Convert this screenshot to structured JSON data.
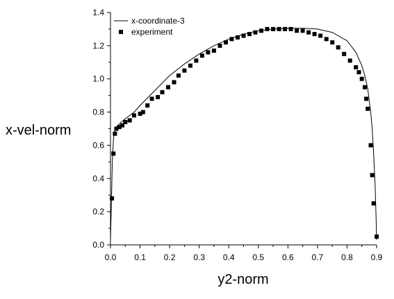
{
  "chart_data": {
    "type": "scatter",
    "title": "",
    "xlabel": "y2-norm",
    "ylabel": "x-vel-norm",
    "xlim": [
      0,
      0.9
    ],
    "ylim": [
      0,
      1.4
    ],
    "xticks": [
      "0.0",
      "0.1",
      "0.2",
      "0.3",
      "0.4",
      "0.5",
      "0.6",
      "0.7",
      "0.8",
      "0.9"
    ],
    "yticks": [
      "0.0",
      "0.2",
      "0.4",
      "0.6",
      "0.8",
      "1.0",
      "1.2",
      "1.4"
    ],
    "grid": false,
    "legend_position": "top-left",
    "series": [
      {
        "name": "x-coordinate-3",
        "style": "line",
        "color": "#000000",
        "x": [
          0.0,
          0.003,
          0.006,
          0.01,
          0.015,
          0.03,
          0.05,
          0.08,
          0.1,
          0.15,
          0.2,
          0.25,
          0.3,
          0.35,
          0.4,
          0.45,
          0.5,
          0.55,
          0.6,
          0.65,
          0.7,
          0.75,
          0.8,
          0.83,
          0.85,
          0.86,
          0.87,
          0.88,
          0.885,
          0.89,
          0.895,
          0.898,
          0.9
        ],
        "y": [
          0.03,
          0.25,
          0.5,
          0.64,
          0.7,
          0.73,
          0.76,
          0.8,
          0.84,
          0.93,
          1.02,
          1.09,
          1.15,
          1.2,
          1.24,
          1.27,
          1.29,
          1.3,
          1.305,
          1.305,
          1.3,
          1.28,
          1.23,
          1.16,
          1.08,
          1.02,
          0.94,
          0.8,
          0.7,
          0.55,
          0.35,
          0.18,
          0.03
        ]
      },
      {
        "name": "experiment",
        "style": "markers",
        "color": "#000000",
        "x": [
          0.005,
          0.01,
          0.015,
          0.02,
          0.03,
          0.04,
          0.05,
          0.065,
          0.08,
          0.1,
          0.11,
          0.125,
          0.14,
          0.16,
          0.175,
          0.195,
          0.215,
          0.23,
          0.25,
          0.27,
          0.29,
          0.31,
          0.33,
          0.35,
          0.37,
          0.39,
          0.41,
          0.43,
          0.45,
          0.47,
          0.49,
          0.51,
          0.53,
          0.55,
          0.57,
          0.59,
          0.61,
          0.63,
          0.65,
          0.67,
          0.69,
          0.71,
          0.73,
          0.75,
          0.77,
          0.79,
          0.81,
          0.83,
          0.84,
          0.85,
          0.86,
          0.865,
          0.87,
          0.88,
          0.885,
          0.89,
          0.9
        ],
        "y": [
          0.28,
          0.55,
          0.67,
          0.7,
          0.71,
          0.72,
          0.74,
          0.75,
          0.78,
          0.79,
          0.8,
          0.84,
          0.88,
          0.89,
          0.92,
          0.95,
          0.98,
          1.02,
          1.05,
          1.08,
          1.11,
          1.14,
          1.16,
          1.17,
          1.2,
          1.22,
          1.24,
          1.25,
          1.26,
          1.27,
          1.28,
          1.29,
          1.3,
          1.3,
          1.3,
          1.3,
          1.3,
          1.29,
          1.29,
          1.28,
          1.27,
          1.26,
          1.24,
          1.22,
          1.19,
          1.15,
          1.11,
          1.07,
          1.04,
          1.0,
          0.95,
          0.88,
          0.82,
          0.6,
          0.42,
          0.25,
          0.05
        ]
      }
    ]
  }
}
